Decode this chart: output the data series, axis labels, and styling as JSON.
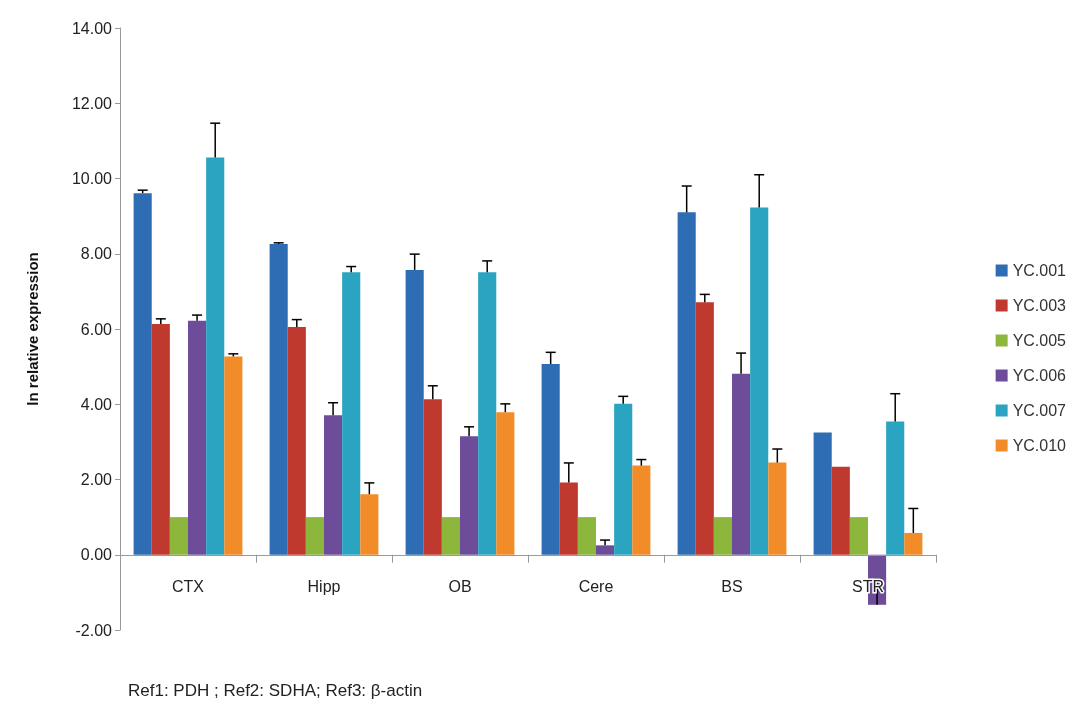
{
  "chart_data": {
    "type": "bar",
    "ylabel": "ln relative expression",
    "categories": [
      "CTX",
      "Hipp",
      "OB",
      "Cere",
      "BS",
      "STR"
    ],
    "series": [
      {
        "name": "YC.001",
        "color": "#2e6db4",
        "values": [
          9.61,
          8.26,
          7.57,
          5.07,
          9.1,
          3.25
        ],
        "errors": [
          [
            9.61,
            9.69
          ],
          [
            8.26,
            8.29
          ],
          [
            7.57,
            7.99
          ],
          [
            5.07,
            5.38
          ],
          [
            9.1,
            9.8
          ],
          null
        ]
      },
      {
        "name": "YC.003",
        "color": "#c0392f",
        "values": [
          6.13,
          6.05,
          4.13,
          1.92,
          6.71,
          2.34
        ],
        "errors": [
          [
            6.13,
            6.27
          ],
          [
            6.05,
            6.25
          ],
          [
            4.13,
            4.49
          ],
          [
            1.92,
            2.44
          ],
          [
            6.71,
            6.92
          ],
          null
        ]
      },
      {
        "name": "YC.005",
        "color": "#8db63c",
        "values": [
          1,
          1,
          1,
          1,
          1,
          1
        ],
        "errors": [
          null,
          null,
          null,
          null,
          null,
          null
        ]
      },
      {
        "name": "YC.006",
        "color": "#6d4c9a",
        "values": [
          6.22,
          3.71,
          3.15,
          0.25,
          4.81,
          -1.33
        ],
        "errors": [
          [
            6.22,
            6.37
          ],
          [
            3.71,
            4.04
          ],
          [
            3.15,
            3.4
          ],
          [
            0.25,
            0.39
          ],
          [
            4.81,
            5.36
          ],
          [
            -1.33,
            -0.65
          ]
        ]
      },
      {
        "name": "YC.007",
        "color": "#2aa4c0",
        "values": [
          10.56,
          7.51,
          7.51,
          4.01,
          9.23,
          3.54
        ],
        "errors": [
          [
            10.56,
            11.47
          ],
          [
            7.51,
            7.66
          ],
          [
            7.51,
            7.81
          ],
          [
            4.01,
            4.21
          ],
          [
            9.23,
            10.1
          ],
          [
            3.54,
            4.28
          ]
        ]
      },
      {
        "name": "YC.010",
        "color": "#f28c28",
        "values": [
          5.27,
          1.61,
          3.79,
          2.37,
          2.45,
          0.58
        ],
        "errors": [
          [
            5.27,
            5.34
          ],
          [
            1.61,
            1.91
          ],
          [
            3.79,
            4.01
          ],
          [
            2.37,
            2.53
          ],
          [
            2.45,
            2.81
          ],
          [
            0.58,
            1.23
          ]
        ]
      }
    ],
    "ylim": [
      -2,
      14
    ],
    "yticks": [
      {
        "value": -2,
        "label": "-2.00"
      },
      {
        "value": 0,
        "label": "0.00"
      },
      {
        "value": 2,
        "label": "2.00"
      },
      {
        "value": 4,
        "label": "4.00"
      },
      {
        "value": 6,
        "label": "6.00"
      },
      {
        "value": 8,
        "label": "8.00"
      },
      {
        "value": 10,
        "label": "10.00"
      },
      {
        "value": 12,
        "label": "12.00"
      },
      {
        "value": 14,
        "label": "14.00"
      }
    ],
    "grid": false,
    "legend": "right",
    "annotations": [
      "Ref1: PDH ; Ref2: SDHA; Ref3: β-actin"
    ]
  }
}
